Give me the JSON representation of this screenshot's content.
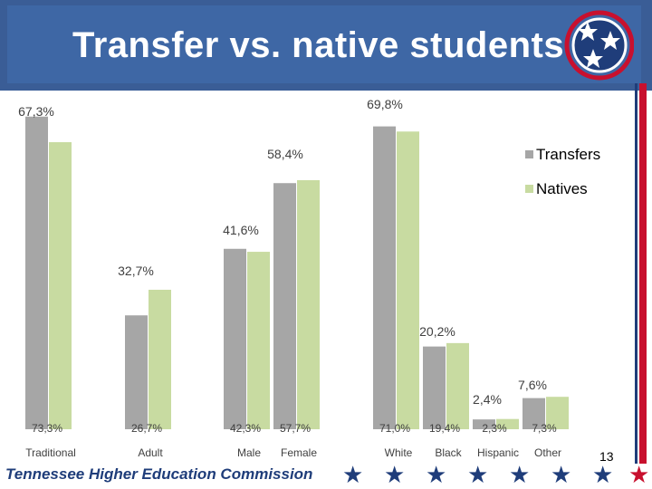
{
  "header": {
    "title": "Transfer vs. native students"
  },
  "footer": {
    "org": "Tennessee Higher Education Commission",
    "page": "13"
  },
  "colors": {
    "transfers": "#a6a6a6",
    "natives": "#c8dba1",
    "header": "#3e67a5",
    "accent_red": "#c8102e",
    "accent_blue": "#1f3d7a"
  },
  "logo": {
    "icon": "tennessee-tristar-icon"
  },
  "chart_data": {
    "type": "bar",
    "categories": [
      "Traditional",
      "Adult",
      "Male",
      "Female",
      "White",
      "Black",
      "Hispanic",
      "Other"
    ],
    "series": [
      {
        "name": "Transfers",
        "values": [
          73.3,
          26.7,
          42.3,
          57.7,
          71.0,
          19.4,
          2.3,
          7.3
        ]
      },
      {
        "name": "Natives",
        "values": [
          67.3,
          32.7,
          41.6,
          58.4,
          69.8,
          20.2,
          2.4,
          7.6
        ]
      }
    ],
    "transfer_labels": [
      "73,3%",
      "26,7%",
      "42,3%",
      "57,7%",
      "71,0%",
      "19,4%",
      "2,3%",
      "7,3%"
    ],
    "native_labels": [
      "67,3%",
      "32,7%",
      "41,6%",
      "58,4%",
      "69,8%",
      "20,2%",
      "2,4%",
      "7,6%"
    ],
    "legend": [
      "Transfers",
      "Natives"
    ],
    "legend_position": "right",
    "ylim": [
      0,
      75
    ],
    "grid": false
  }
}
